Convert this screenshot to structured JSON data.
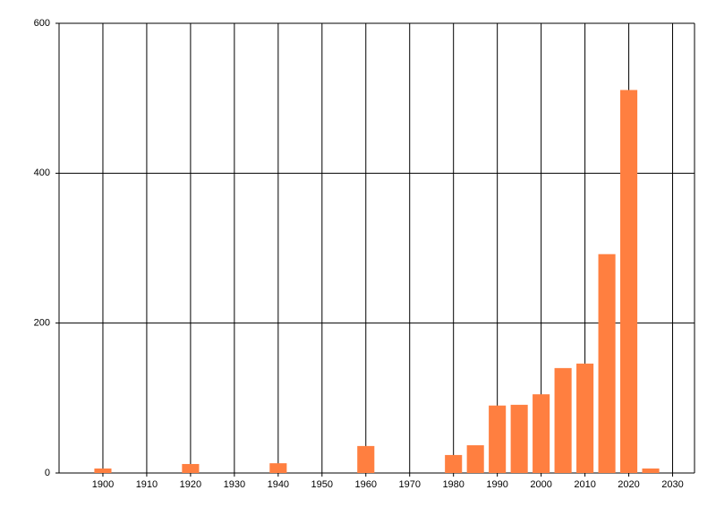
{
  "chart_data": {
    "type": "bar",
    "x": [
      1900,
      1920,
      1940,
      1960,
      1980,
      1985,
      1990,
      1995,
      2000,
      2005,
      2010,
      2015,
      2020,
      2025
    ],
    "values": [
      6,
      12,
      13,
      36,
      24,
      37,
      90,
      91,
      105,
      140,
      146,
      292,
      511,
      6
    ],
    "color": "#ff7f40",
    "xlim": [
      1890,
      2035
    ],
    "xticks": [
      1900,
      1910,
      1920,
      1930,
      1940,
      1950,
      1960,
      1970,
      1980,
      1990,
      2000,
      2010,
      2020,
      2030
    ],
    "ylim": [
      0,
      600
    ],
    "yticks": [
      0,
      200,
      400,
      600
    ],
    "grid": true
  }
}
